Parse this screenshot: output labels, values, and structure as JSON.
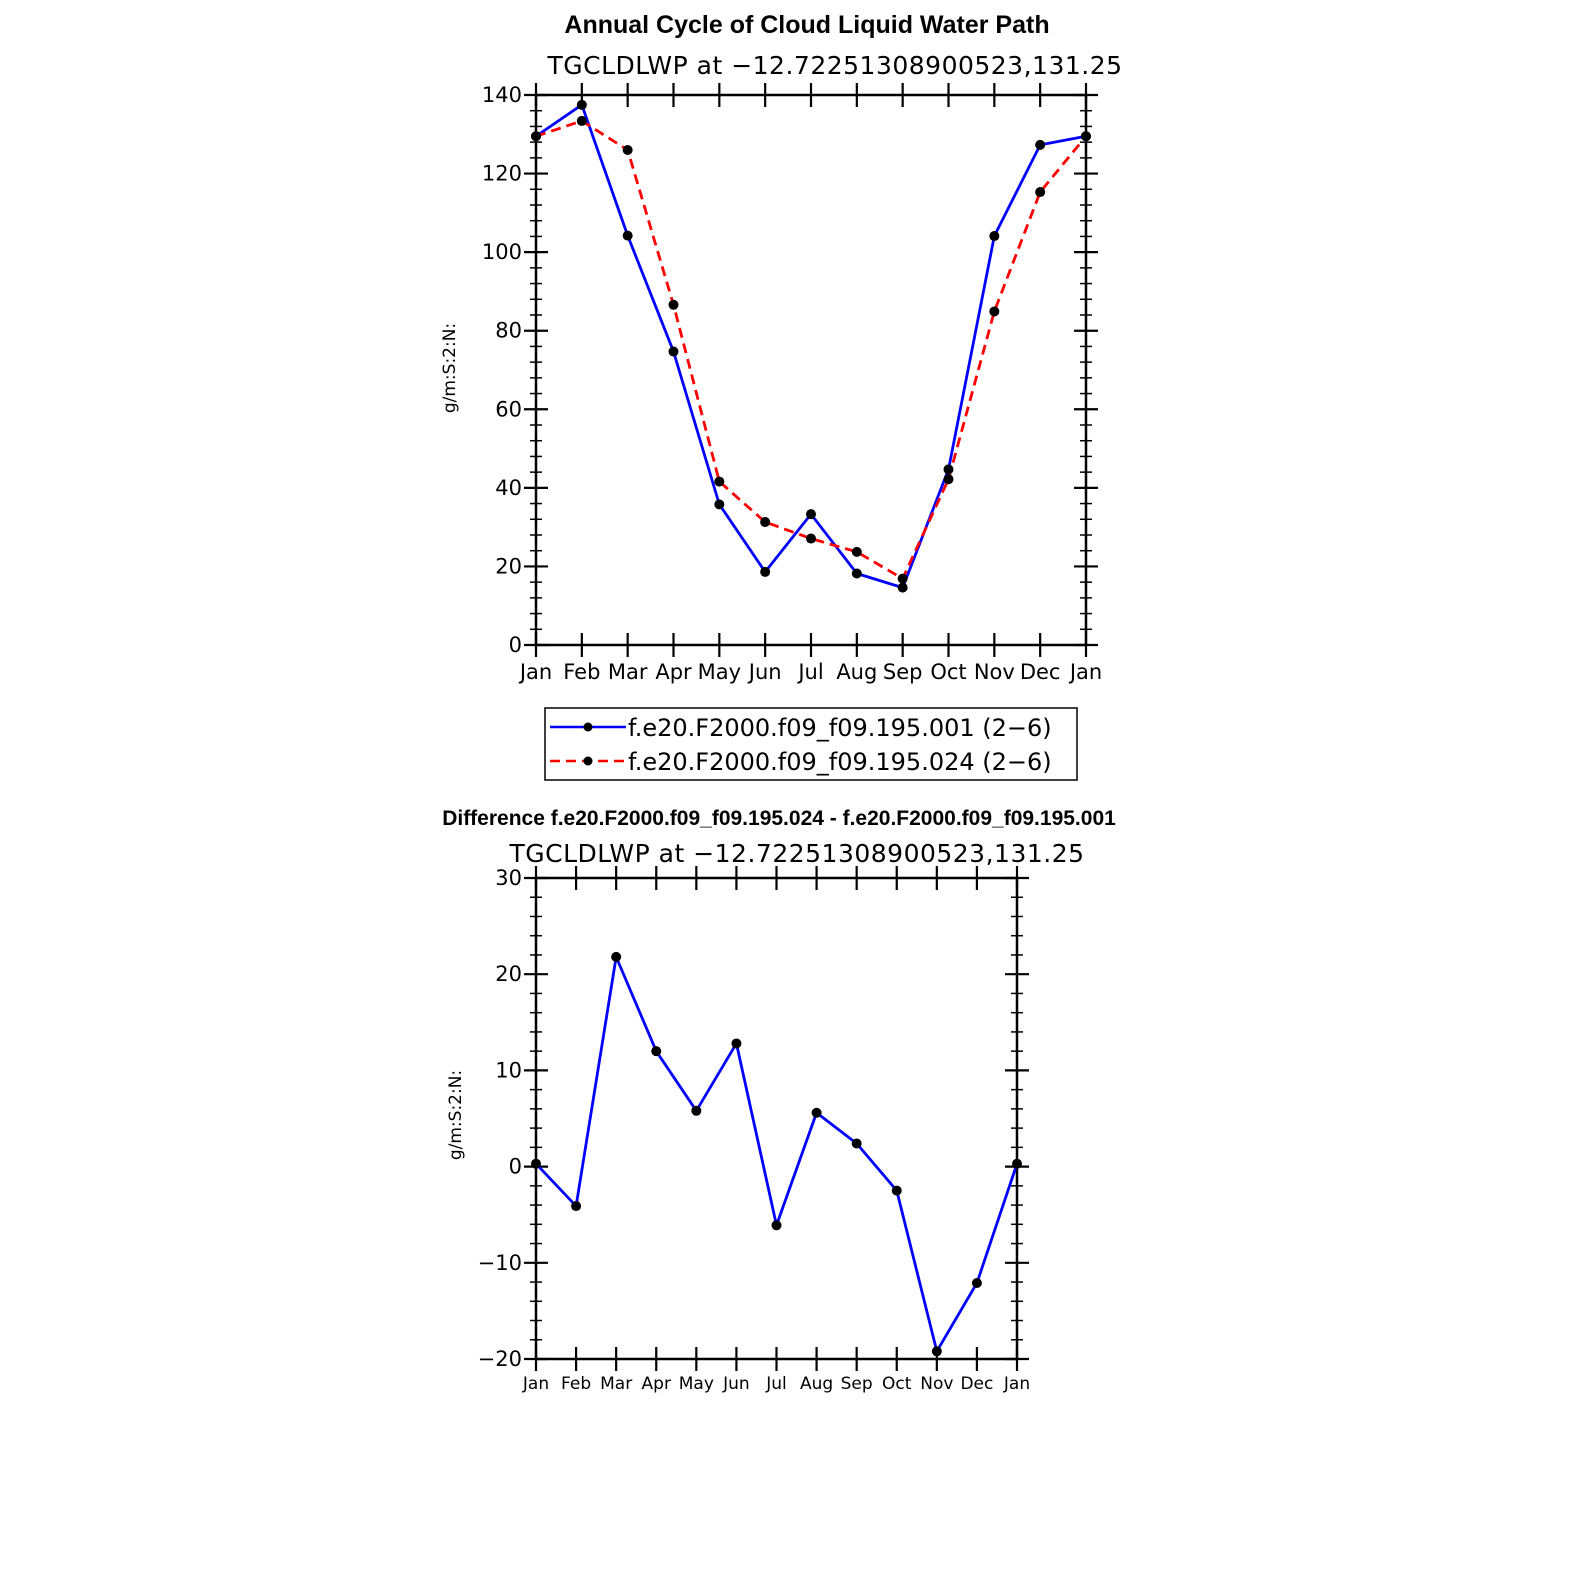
{
  "chart_data": [
    {
      "type": "line",
      "title": "Annual Cycle of Cloud Liquid Water Path",
      "subtitle": "TGCLDLWP  at  −12.72251308900523,131.25",
      "ylabel": "g/m:S:2:N:",
      "xlabel": "",
      "categories": [
        "Jan",
        "Feb",
        "Mar",
        "Apr",
        "May",
        "Jun",
        "Jul",
        "Aug",
        "Sep",
        "Oct",
        "Nov",
        "Dec",
        "Jan"
      ],
      "ylim": [
        0,
        140
      ],
      "yticks": [
        "0",
        "20",
        "40",
        "60",
        "80",
        "100",
        "120",
        "140"
      ],
      "grid": false,
      "legend_position": "bottom",
      "series": [
        {
          "name": "f.e20.F2000.f09_f09.195.001 (2−6)",
          "color": "#0000ff",
          "dash": "solid",
          "values": [
            129.5,
            137.5,
            104.2,
            74.7,
            35.8,
            18.6,
            33.3,
            18.2,
            14.6,
            44.7,
            104.1,
            127.3,
            129.5
          ]
        },
        {
          "name": "f.e20.F2000.f09_f09.195.024 (2−6)",
          "color": "#ff0000",
          "dash": "dashed",
          "values": [
            129.5,
            133.4,
            126.0,
            86.6,
            41.6,
            31.3,
            27.1,
            23.7,
            16.9,
            42.2,
            84.9,
            115.3,
            129.5
          ]
        }
      ]
    },
    {
      "type": "line",
      "title": "Difference f.e20.F2000.f09_f09.195.024 - f.e20.F2000.f09_f09.195.001",
      "subtitle": "TGCLDLWP  at  −12.72251308900523,131.25",
      "ylabel": "g/m:S:2:N:",
      "xlabel": "",
      "categories": [
        "Jan",
        "Feb",
        "Mar",
        "Apr",
        "May",
        "Jun",
        "Jul",
        "Aug",
        "Sep",
        "Oct",
        "Nov",
        "Dec",
        "Jan"
      ],
      "ylim": [
        -20,
        30
      ],
      "yticks": [
        "−20",
        "−10",
        "0",
        "10",
        "20",
        "30"
      ],
      "grid": false,
      "series": [
        {
          "color": "#0000ff",
          "dash": "solid",
          "values": [
            0.3,
            -4.1,
            21.8,
            12.0,
            5.8,
            12.8,
            -6.1,
            5.6,
            2.4,
            -2.5,
            -19.2,
            -12.1,
            0.3
          ]
        }
      ]
    }
  ]
}
